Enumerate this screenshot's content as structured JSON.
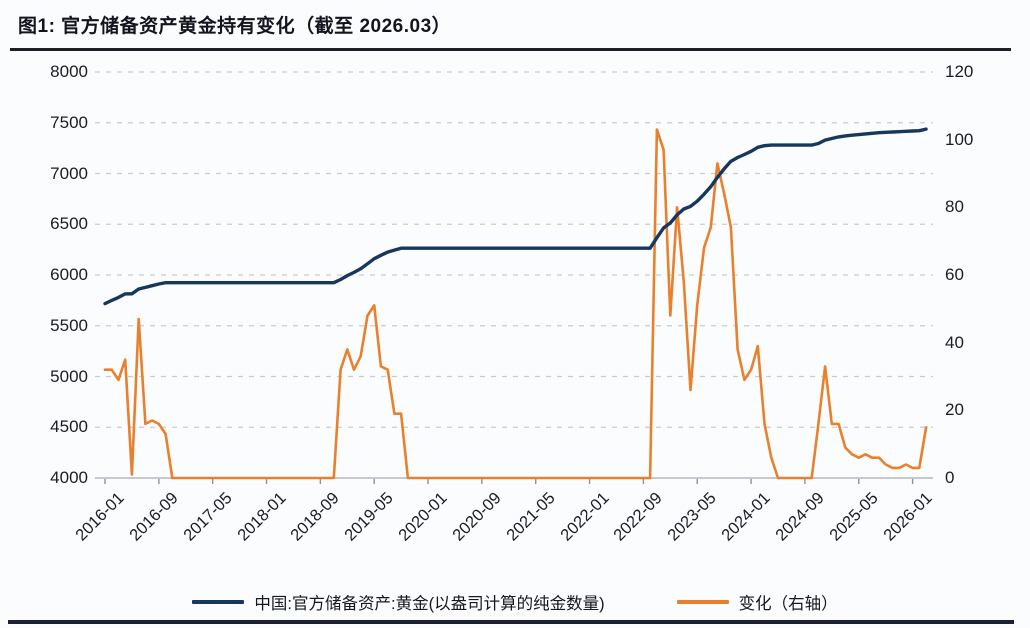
{
  "title": "图1: 官方储备资产黄金持有变化（截至 2026.03）",
  "legend": {
    "holdings_label": "中国:官方储备资产:黄金(以盎司计算的纯金数量)",
    "change_label": "变化（右轴）"
  },
  "colors": {
    "holdings_line": "#17375e",
    "change_line": "#e8802d",
    "grid": "#c9ccd4",
    "baseline": "#b3b7bf",
    "rule": "#1e1e24"
  },
  "chart_data": {
    "type": "line",
    "title": "图1: 官方储备资产黄金持有变化（截至 2026.03）",
    "x_frequency": "monthly",
    "x_start": "2016-01",
    "x_end": "2026-03",
    "x_tick_labels": [
      "2016-01",
      "2016-09",
      "2017-05",
      "2018-01",
      "2018-09",
      "2019-05",
      "2020-01",
      "2020-09",
      "2021-05",
      "2022-01",
      "2022-09",
      "2023-05",
      "2024-01",
      "2024-09",
      "2025-05",
      "2026-01"
    ],
    "x_tick_interval_months": 8,
    "left_axis": {
      "range": [
        4000,
        8000
      ],
      "ticks": [
        8000,
        7500,
        7000,
        6500,
        6000,
        5500,
        5000,
        4500,
        4000
      ]
    },
    "right_axis": {
      "range": [
        0,
        120
      ],
      "ticks": [
        120,
        100,
        80,
        60,
        40,
        20,
        0
      ]
    },
    "grid": "horizontal dashed",
    "legend_position": "bottom",
    "series": [
      {
        "name": "中国:官方储备资产:黄金(以盎司计算的纯金数量)",
        "axis": "left",
        "color": "#17375e",
        "values": [
          5718,
          5750,
          5779,
          5814,
          5815,
          5862,
          5878,
          5895,
          5911,
          5924,
          5924,
          5924,
          5924,
          5924,
          5924,
          5924,
          5924,
          5924,
          5924,
          5924,
          5924,
          5924,
          5924,
          5924,
          5924,
          5924,
          5924,
          5924,
          5924,
          5924,
          5924,
          5924,
          5924,
          5924,
          5924,
          5956,
          5994,
          6026,
          6062,
          6110,
          6161,
          6194,
          6226,
          6245,
          6264,
          6264,
          6264,
          6264,
          6264,
          6264,
          6264,
          6264,
          6264,
          6264,
          6264,
          6264,
          6264,
          6264,
          6264,
          6264,
          6264,
          6264,
          6264,
          6264,
          6264,
          6264,
          6264,
          6264,
          6264,
          6264,
          6264,
          6264,
          6264,
          6264,
          6264,
          6264,
          6264,
          6264,
          6264,
          6264,
          6264,
          6264,
          6367,
          6464,
          6512,
          6592,
          6650,
          6676,
          6727,
          6795,
          6869,
          6962,
          7046,
          7120,
          7158,
          7187,
          7219,
          7258,
          7274,
          7280,
          7280,
          7280,
          7280,
          7280,
          7280,
          7280,
          7296,
          7329,
          7345,
          7361,
          7370,
          7377,
          7383,
          7390,
          7396,
          7402,
          7406,
          7409,
          7412,
          7416,
          7419,
          7422,
          7437
        ]
      },
      {
        "name": "变化（右轴）",
        "axis": "right",
        "color": "#e8802d",
        "values": [
          32,
          32,
          29,
          35,
          1,
          47,
          16,
          17,
          16,
          13,
          0,
          0,
          0,
          0,
          0,
          0,
          0,
          0,
          0,
          0,
          0,
          0,
          0,
          0,
          0,
          0,
          0,
          0,
          0,
          0,
          0,
          0,
          0,
          0,
          0,
          32,
          38,
          32,
          36,
          48,
          51,
          33,
          32,
          19,
          19,
          0,
          0,
          0,
          0,
          0,
          0,
          0,
          0,
          0,
          0,
          0,
          0,
          0,
          0,
          0,
          0,
          0,
          0,
          0,
          0,
          0,
          0,
          0,
          0,
          0,
          0,
          0,
          0,
          0,
          0,
          0,
          0,
          0,
          0,
          0,
          0,
          0,
          103,
          97,
          48,
          80,
          58,
          26,
          51,
          68,
          74,
          93,
          84,
          74,
          38,
          29,
          32,
          39,
          16,
          6,
          0,
          0,
          0,
          0,
          0,
          0,
          16,
          33,
          16,
          16,
          9,
          7,
          6,
          7,
          6,
          6,
          4,
          3,
          3,
          4,
          3,
          3,
          15
        ]
      }
    ]
  }
}
